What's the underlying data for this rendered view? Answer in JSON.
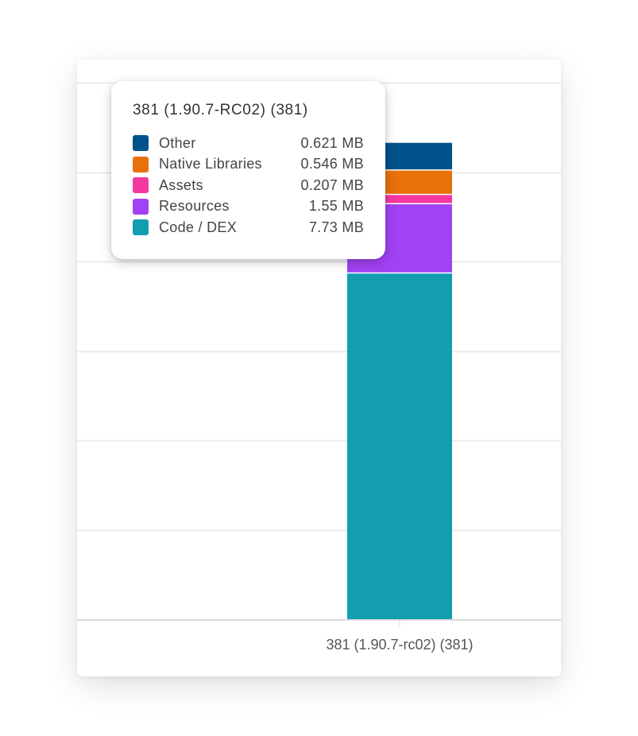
{
  "chart_data": {
    "type": "bar",
    "stacked": true,
    "categories": [
      "381 (1.90.7-rc02) (381)"
    ],
    "series": [
      {
        "name": "Code / DEX",
        "values": [
          7.73
        ],
        "value_label": "7.73 MB",
        "color": "#139eaf"
      },
      {
        "name": "Resources",
        "values": [
          1.55
        ],
        "value_label": "1.55 MB",
        "color": "#a142f4"
      },
      {
        "name": "Assets",
        "values": [
          0.207
        ],
        "value_label": "0.207 MB",
        "color": "#f538a0"
      },
      {
        "name": "Native Libraries",
        "values": [
          0.546
        ],
        "value_label": "0.546 MB",
        "color": "#e8710a"
      },
      {
        "name": "Other",
        "values": [
          0.621
        ],
        "value_label": "0.621 MB",
        "color": "#00538a"
      }
    ],
    "ylim": [
      0,
      12
    ],
    "grid": true,
    "units": "MB"
  },
  "tooltip": {
    "title": "381 (1.90.7-RC02) (381)",
    "items": [
      {
        "name": "Other",
        "value": "0.621 MB",
        "color": "#00538a"
      },
      {
        "name": "Native Libraries",
        "value": "0.546 MB",
        "color": "#e8710a"
      },
      {
        "name": "Assets",
        "value": "0.207 MB",
        "color": "#f538a0"
      },
      {
        "name": "Resources",
        "value": "1.55 MB",
        "color": "#a142f4"
      },
      {
        "name": "Code / DEX",
        "value": "7.73 MB",
        "color": "#139eaf"
      }
    ]
  }
}
